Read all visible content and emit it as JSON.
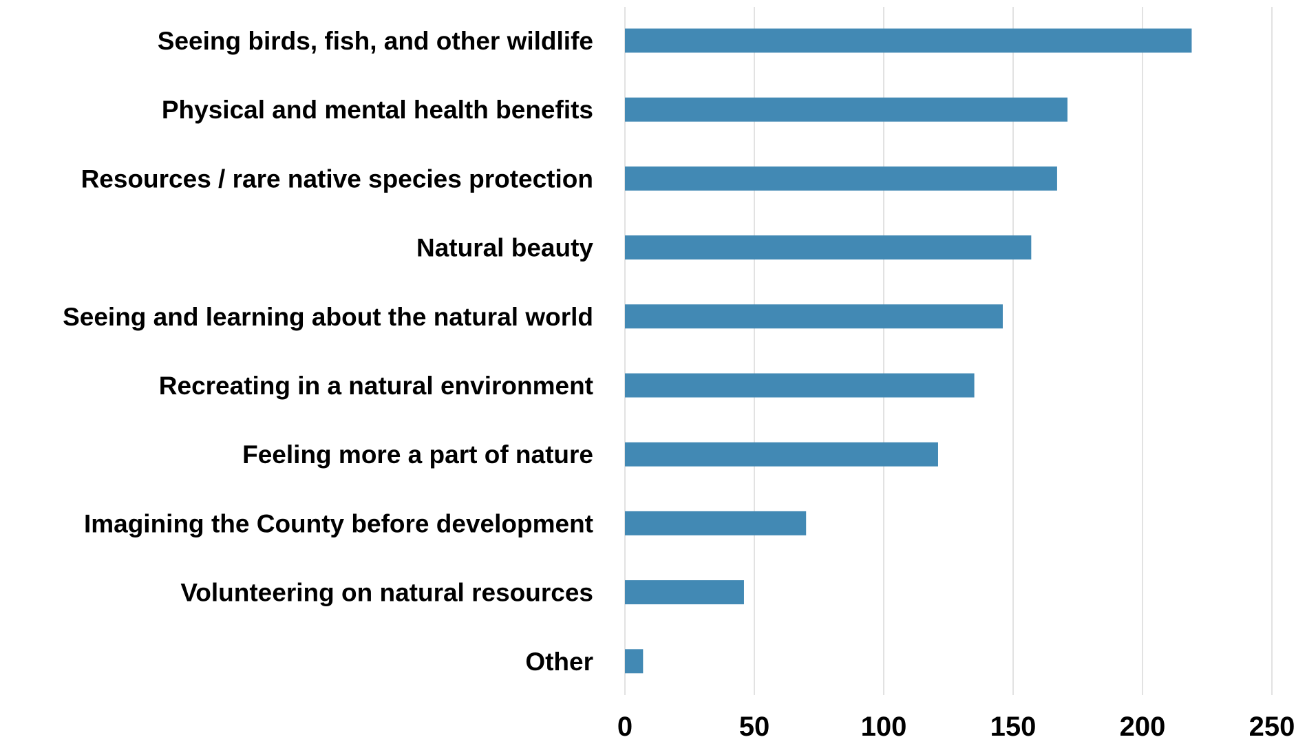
{
  "chart_data": {
    "type": "bar",
    "orientation": "horizontal",
    "categories": [
      "Seeing birds, fish, and other wildlife",
      "Physical and mental health benefits",
      "Resources / rare native species protection",
      "Natural beauty",
      "Seeing and learning about the natural world",
      "Recreating in a natural environment",
      "Feeling more a part of nature",
      "Imagining the County before development",
      "Volunteering on natural resources",
      "Other"
    ],
    "values": [
      219,
      171,
      167,
      157,
      146,
      135,
      121,
      70,
      46,
      7
    ],
    "xlim": [
      0,
      250
    ],
    "xticks": [
      "0",
      "50",
      "100",
      "150",
      "200",
      "250"
    ],
    "grid": "vertical",
    "bar_color": "#4289b4",
    "title": "",
    "xlabel": "",
    "ylabel": ""
  }
}
